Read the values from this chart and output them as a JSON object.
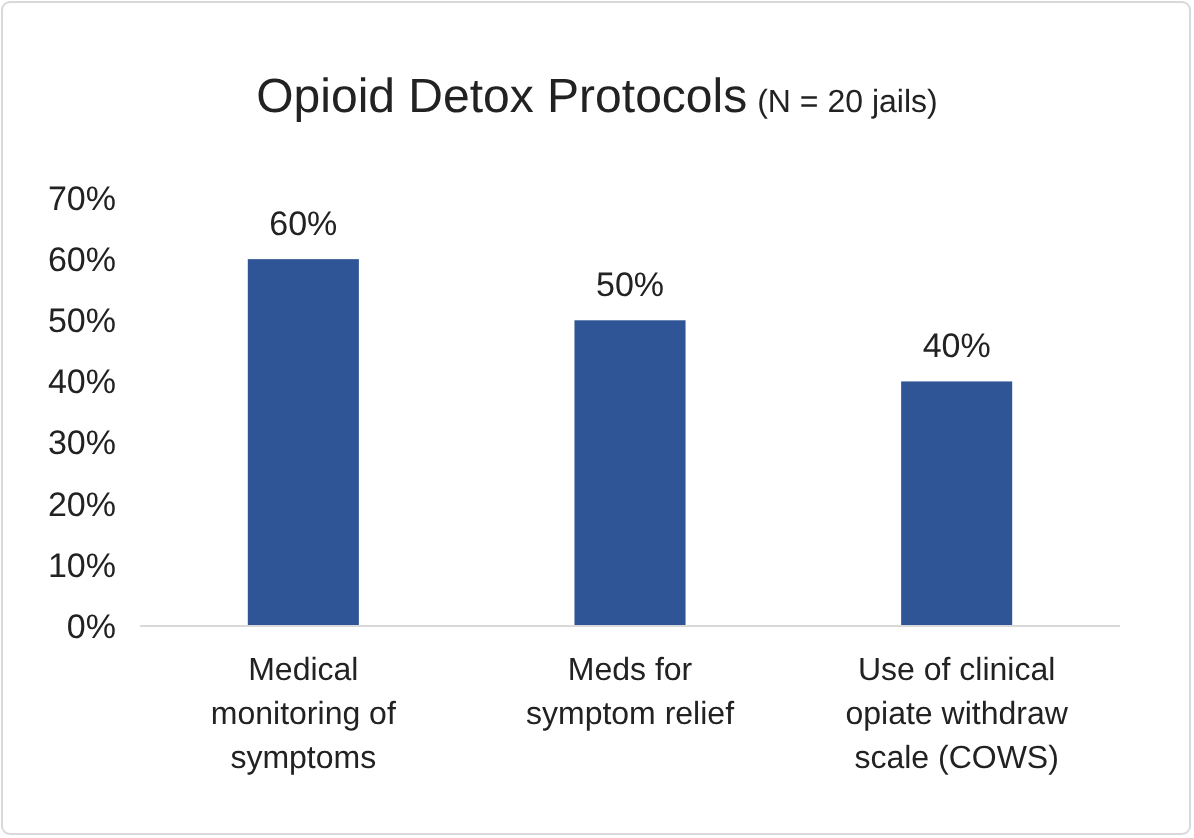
{
  "chart_data": {
    "type": "bar",
    "title": "Opioid Detox Protocols",
    "subtitle": "(N = 20 jails)",
    "categories": [
      "Medical monitoring of symptoms",
      "Meds for symptom relief",
      "Use of clinical opiate withdraw scale (COWS)"
    ],
    "values": [
      60,
      50,
      40
    ],
    "value_labels": [
      "60%",
      "50%",
      "40%"
    ],
    "color": "#2f5597",
    "grid": false,
    "ylim": [
      0,
      70
    ],
    "yticks": [
      {
        "value": 0,
        "label": "0%"
      },
      {
        "value": 10,
        "label": "10%"
      },
      {
        "value": 20,
        "label": "20%"
      },
      {
        "value": 30,
        "label": "30%"
      },
      {
        "value": 40,
        "label": "40%"
      },
      {
        "value": 50,
        "label": "50%"
      },
      {
        "value": 60,
        "label": "60%"
      },
      {
        "value": 70,
        "label": "70%"
      }
    ]
  }
}
